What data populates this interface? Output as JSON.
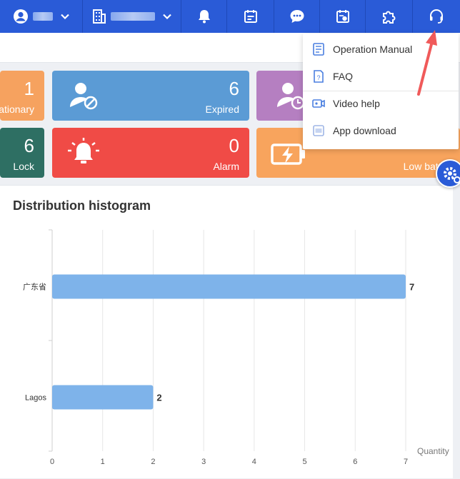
{
  "topbar": {
    "colors": {
      "bg": "#2a5bd7"
    },
    "icons": [
      "user-icon",
      "building-icon",
      "bell-icon",
      "calendar-icon",
      "message-icon",
      "schedule-icon",
      "plugin-icon",
      "headset-icon"
    ]
  },
  "cards": [
    {
      "value": "1",
      "label": "ationary",
      "color": "#f6a25f"
    },
    {
      "value": "6",
      "label": "Expired",
      "color": "#5b9bd5"
    },
    {
      "value": "",
      "label": "",
      "color": "#b57fc1"
    },
    {
      "value": "6",
      "label": "Lock",
      "color": "#2e6f63"
    },
    {
      "value": "0",
      "label": "Alarm",
      "color": "#f04b46"
    },
    {
      "value": "",
      "label": "Low batter",
      "color": "#f8a45d"
    }
  ],
  "dropdown": {
    "items": [
      {
        "label": "Operation Manual",
        "icon": "manual-icon"
      },
      {
        "label": "FAQ",
        "icon": "faq-icon"
      },
      {
        "label": "Video help",
        "icon": "video-icon"
      },
      {
        "label": "App download",
        "icon": "app-download-icon"
      }
    ]
  },
  "panel": {
    "title": "Distribution histogram"
  },
  "chart_data": {
    "type": "bar",
    "orientation": "horizontal",
    "categories": [
      "广东省",
      "Lagos"
    ],
    "values": [
      7,
      2
    ],
    "xlabel": "Quantity",
    "xlim": [
      0,
      7
    ],
    "x_ticks": [
      "0",
      "1",
      "2",
      "3",
      "4",
      "5",
      "6",
      "7"
    ],
    "grid": true,
    "bar_color": "#7eb3ea"
  }
}
